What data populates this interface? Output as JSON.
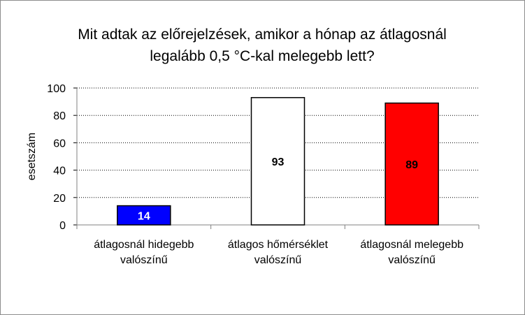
{
  "chart_data": {
    "type": "bar",
    "title_lines": [
      "Mit adtak az előrejelzések, amikor a hónap az átlagosnál",
      "legalább 0,5 °C-kal melegebb lett?"
    ],
    "ylabel": "esetszám",
    "xlabel": "",
    "ylim": [
      0,
      100
    ],
    "yticks": [
      0,
      20,
      40,
      60,
      80,
      100
    ],
    "grid": "horizontal-dotted",
    "legend": "none",
    "categories": [
      [
        "átlagosnál hidegebb",
        "valószínű"
      ],
      [
        "átlagos hőmérséklet",
        "valószínű"
      ],
      [
        "átlagosnál melegebb",
        "valószínű"
      ]
    ],
    "values": [
      14,
      93,
      89
    ],
    "bar_colors": [
      "#0000ff",
      "#ffffff",
      "#ff0000"
    ],
    "label_colors": [
      "#ffffff",
      "#000000",
      "#000000"
    ]
  }
}
